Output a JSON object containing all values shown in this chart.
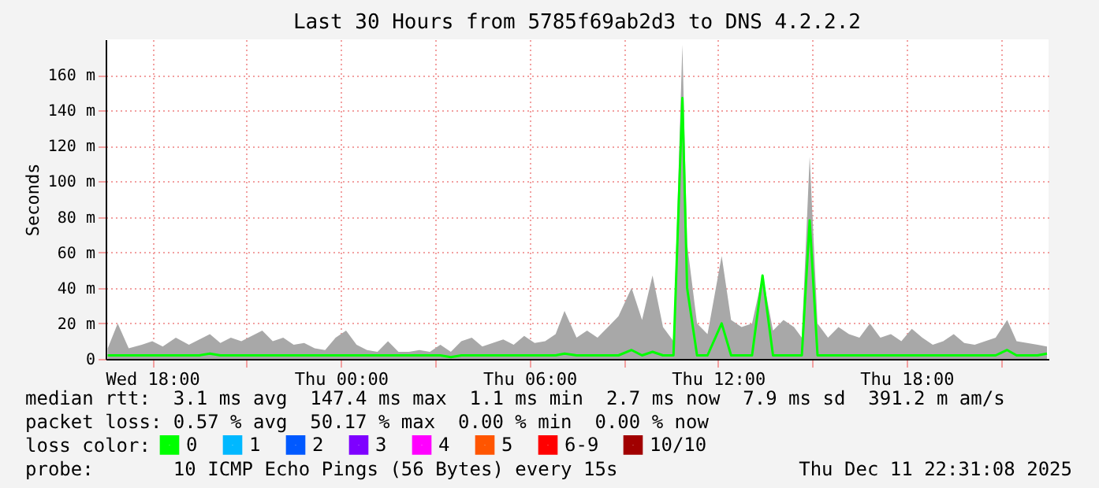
{
  "chart_data": {
    "type": "line",
    "title": "Last 30 Hours from 5785f69ab2d3 to DNS 4.2.2.2",
    "ylabel": "Seconds",
    "legend_title": "loss color:",
    "legend": "bottom",
    "grid": true,
    "marker": "none",
    "line_style": "solid",
    "x": [
      "2025-12-10T16:35",
      "2025-12-10T16:54",
      "2025-12-10T17:15",
      "2025-12-10T17:40",
      "2025-12-10T18:00",
      "2025-12-10T18:20",
      "2025-12-10T18:45",
      "2025-12-10T19:10",
      "2025-12-10T19:30",
      "2025-12-10T19:50",
      "2025-12-10T20:10",
      "2025-12-10T20:30",
      "2025-12-10T20:50",
      "2025-12-10T21:10",
      "2025-12-10T21:30",
      "2025-12-10T21:50",
      "2025-12-10T22:10",
      "2025-12-10T22:30",
      "2025-12-10T22:50",
      "2025-12-10T23:10",
      "2025-12-10T23:30",
      "2025-12-10T23:50",
      "2025-12-11T00:10",
      "2025-12-11T00:30",
      "2025-12-11T00:50",
      "2025-12-11T01:10",
      "2025-12-11T01:30",
      "2025-12-11T01:50",
      "2025-12-11T02:10",
      "2025-12-11T02:30",
      "2025-12-11T02:50",
      "2025-12-11T03:10",
      "2025-12-11T03:30",
      "2025-12-11T03:50",
      "2025-12-11T04:10",
      "2025-12-11T04:30",
      "2025-12-11T04:50",
      "2025-12-11T05:10",
      "2025-12-11T05:30",
      "2025-12-11T05:50",
      "2025-12-11T06:10",
      "2025-12-11T06:30",
      "2025-12-11T06:50",
      "2025-12-11T07:07",
      "2025-12-11T07:30",
      "2025-12-11T07:50",
      "2025-12-11T08:10",
      "2025-12-11T08:30",
      "2025-12-11T08:50",
      "2025-12-11T09:15",
      "2025-12-11T09:35",
      "2025-12-11T09:55",
      "2025-12-11T10:15",
      "2025-12-11T10:35",
      "2025-12-11T10:52",
      "2025-12-11T11:01",
      "2025-12-11T11:20",
      "2025-12-11T11:40",
      "2025-12-11T12:07",
      "2025-12-11T12:25",
      "2025-12-11T12:45",
      "2025-12-11T13:05",
      "2025-12-11T13:25",
      "2025-12-11T13:45",
      "2025-12-11T14:05",
      "2025-12-11T14:25",
      "2025-12-11T14:40",
      "2025-12-11T14:55",
      "2025-12-11T15:10",
      "2025-12-11T15:30",
      "2025-12-11T15:50",
      "2025-12-11T16:10",
      "2025-12-11T16:30",
      "2025-12-11T16:50",
      "2025-12-11T17:10",
      "2025-12-11T17:30",
      "2025-12-11T17:50",
      "2025-12-11T18:10",
      "2025-12-11T18:30",
      "2025-12-11T18:50",
      "2025-12-11T19:10",
      "2025-12-11T19:30",
      "2025-12-11T19:50",
      "2025-12-11T20:10",
      "2025-12-11T20:30",
      "2025-12-11T20:50",
      "2025-12-11T21:12",
      "2025-12-11T21:30",
      "2025-12-11T21:50",
      "2025-12-11T22:10",
      "2025-12-11T22:28"
    ],
    "series": [
      {
        "type": "area",
        "color": "#a8a8a8",
        "values": [
          6,
          20,
          6,
          8,
          10,
          7,
          12,
          8,
          11,
          14,
          9,
          12,
          10,
          13,
          16,
          10,
          12,
          8,
          9,
          6,
          5,
          12,
          16,
          8,
          5,
          4,
          10,
          4,
          4,
          5,
          4,
          8,
          4,
          10,
          12,
          7,
          9,
          11,
          8,
          13,
          9,
          10,
          14,
          27,
          12,
          16,
          12,
          18,
          24,
          40,
          22,
          47,
          18,
          10,
          177,
          65,
          20,
          14,
          58,
          22,
          18,
          20,
          47,
          16,
          22,
          18,
          12,
          114,
          20,
          12,
          18,
          14,
          12,
          20,
          12,
          14,
          10,
          17,
          12,
          8,
          10,
          14,
          9,
          8,
          10,
          12,
          22,
          10,
          9,
          8,
          7
        ]
      },
      {
        "name": "0",
        "color": "#00ff00",
        "values": [
          2,
          2,
          2,
          2,
          2,
          2,
          2,
          2,
          2,
          3,
          2,
          2,
          2,
          2,
          2,
          2,
          2,
          2,
          2,
          2,
          2,
          2,
          2,
          2,
          2,
          2,
          2,
          2,
          2,
          2,
          2,
          2,
          1,
          2,
          2,
          2,
          2,
          2,
          2,
          2,
          2,
          2,
          2,
          3,
          2,
          2,
          2,
          2,
          2,
          5,
          2,
          4,
          2,
          2,
          147,
          40,
          2,
          2,
          20,
          2,
          2,
          2,
          47,
          2,
          2,
          2,
          2,
          78,
          2,
          2,
          2,
          2,
          2,
          2,
          2,
          2,
          2,
          2,
          2,
          2,
          2,
          2,
          2,
          2,
          2,
          2,
          5,
          2,
          2,
          2,
          3
        ]
      },
      {
        "name": "1",
        "color": "#00b8ff",
        "values": [
          null,
          null,
          null,
          null,
          null,
          null,
          null,
          null,
          null,
          null,
          null,
          null,
          null,
          null,
          null,
          null,
          null,
          null,
          null,
          null,
          null,
          null,
          null,
          null,
          null,
          null,
          null,
          null,
          null,
          null,
          null,
          null,
          null,
          null,
          null,
          null,
          null,
          null,
          null,
          null,
          null,
          null,
          null,
          null,
          null,
          null,
          null,
          null,
          null,
          null,
          null,
          null,
          null,
          null,
          null,
          null,
          null,
          null,
          null,
          null,
          null,
          null,
          null,
          null,
          null,
          null,
          null,
          null,
          null,
          null,
          null,
          null,
          null,
          null,
          null,
          null,
          null,
          null,
          null,
          null,
          null,
          null,
          null,
          null,
          null,
          null,
          null,
          null,
          null,
          null,
          null
        ]
      },
      {
        "name": "2",
        "color": "#0059ff",
        "values": [
          null,
          null,
          null,
          null,
          null,
          null,
          null,
          null,
          null,
          null,
          null,
          null,
          null,
          null,
          null,
          null,
          null,
          null,
          null,
          null,
          null,
          null,
          null,
          null,
          null,
          null,
          null,
          null,
          null,
          null,
          null,
          null,
          null,
          null,
          null,
          null,
          null,
          null,
          null,
          null,
          null,
          null,
          null,
          null,
          null,
          null,
          null,
          null,
          null,
          null,
          null,
          null,
          null,
          null,
          null,
          null,
          null,
          null,
          null,
          null,
          null,
          null,
          null,
          null,
          null,
          null,
          null,
          null,
          null,
          null,
          null,
          null,
          null,
          null,
          null,
          null,
          null,
          null,
          null,
          null,
          null,
          null,
          null,
          null,
          null,
          null,
          null,
          null,
          null,
          null,
          null
        ]
      },
      {
        "name": "3",
        "color": "#7e00ff",
        "values": [
          null,
          null,
          null,
          null,
          null,
          null,
          null,
          null,
          null,
          null,
          null,
          null,
          null,
          null,
          null,
          null,
          null,
          null,
          null,
          null,
          null,
          null,
          null,
          null,
          null,
          null,
          null,
          null,
          null,
          null,
          null,
          null,
          null,
          null,
          null,
          null,
          null,
          null,
          null,
          null,
          null,
          null,
          null,
          null,
          null,
          null,
          null,
          null,
          null,
          null,
          null,
          null,
          null,
          null,
          null,
          null,
          null,
          null,
          null,
          null,
          null,
          null,
          null,
          null,
          null,
          null,
          null,
          null,
          null,
          null,
          null,
          null,
          null,
          null,
          null,
          null,
          null,
          null,
          null,
          null,
          null,
          null,
          null,
          null,
          null,
          null,
          null,
          null,
          null,
          null,
          null
        ]
      },
      {
        "name": "4",
        "color": "#ff00ff",
        "values": [
          null,
          null,
          null,
          null,
          null,
          null,
          null,
          null,
          null,
          null,
          null,
          null,
          null,
          null,
          null,
          null,
          null,
          null,
          null,
          null,
          null,
          null,
          null,
          null,
          null,
          null,
          null,
          null,
          null,
          null,
          null,
          null,
          null,
          null,
          null,
          null,
          null,
          null,
          null,
          null,
          null,
          null,
          null,
          null,
          null,
          null,
          null,
          null,
          null,
          null,
          null,
          null,
          null,
          null,
          null,
          null,
          null,
          null,
          null,
          null,
          null,
          null,
          null,
          null,
          null,
          null,
          null,
          null,
          null,
          null,
          null,
          null,
          null,
          null,
          null,
          null,
          null,
          null,
          null,
          null,
          null,
          null,
          null,
          null,
          null,
          null,
          null,
          null,
          null,
          null,
          null
        ]
      },
      {
        "name": "5",
        "color": "#ff5500",
        "values": [
          null,
          null,
          null,
          null,
          null,
          null,
          null,
          null,
          null,
          null,
          null,
          null,
          null,
          null,
          null,
          null,
          null,
          null,
          null,
          null,
          null,
          null,
          null,
          null,
          null,
          null,
          null,
          null,
          null,
          null,
          null,
          null,
          null,
          null,
          null,
          null,
          null,
          null,
          null,
          null,
          null,
          null,
          null,
          null,
          null,
          null,
          null,
          null,
          null,
          null,
          null,
          null,
          null,
          null,
          null,
          null,
          null,
          null,
          null,
          null,
          null,
          null,
          null,
          null,
          null,
          null,
          null,
          null,
          null,
          null,
          null,
          null,
          null,
          null,
          null,
          null,
          null,
          null,
          null,
          null,
          null,
          null,
          null,
          null,
          null,
          null,
          null,
          null,
          null,
          null,
          null
        ]
      },
      {
        "name": "6-9",
        "color": "#ff0000",
        "values": [
          null,
          null,
          null,
          null,
          null,
          null,
          null,
          null,
          null,
          null,
          null,
          null,
          null,
          null,
          null,
          null,
          null,
          null,
          null,
          null,
          null,
          null,
          null,
          null,
          null,
          null,
          null,
          null,
          null,
          null,
          null,
          null,
          null,
          null,
          null,
          null,
          null,
          null,
          null,
          null,
          null,
          null,
          null,
          null,
          null,
          null,
          null,
          null,
          null,
          null,
          null,
          null,
          null,
          null,
          null,
          null,
          null,
          null,
          null,
          null,
          null,
          null,
          null,
          null,
          null,
          null,
          null,
          null,
          null,
          null,
          null,
          null,
          null,
          null,
          null,
          null,
          null,
          null,
          null,
          null,
          null,
          null,
          null,
          null,
          null,
          null,
          null,
          null,
          null,
          null,
          null
        ]
      },
      {
        "name": "10/10",
        "color": "#a10000",
        "values": [
          null,
          null,
          null,
          null,
          null,
          null,
          null,
          null,
          null,
          null,
          null,
          null,
          null,
          null,
          null,
          null,
          null,
          null,
          null,
          null,
          null,
          null,
          null,
          null,
          null,
          null,
          null,
          null,
          null,
          null,
          null,
          null,
          null,
          null,
          null,
          null,
          null,
          null,
          null,
          null,
          null,
          null,
          null,
          null,
          null,
          null,
          null,
          null,
          null,
          null,
          null,
          null,
          null,
          null,
          null,
          null,
          null,
          null,
          null,
          null,
          null,
          null,
          null,
          null,
          null,
          null,
          null,
          null,
          null,
          null,
          null,
          null,
          null,
          null,
          null,
          null,
          null,
          null,
          null,
          null,
          null,
          null,
          null,
          null,
          null,
          null,
          null,
          null,
          null,
          null,
          null
        ]
      }
    ],
    "xlim": [
      "2025-12-10T16:31",
      "2025-12-11T22:31"
    ],
    "xticks": [
      {
        "value": "2025-12-10T18:00",
        "label": "Wed 18:00"
      },
      {
        "value": "2025-12-10T21:00",
        "label": null
      },
      {
        "value": "2025-12-11T00:00",
        "label": "Thu 00:00"
      },
      {
        "value": "2025-12-11T03:00",
        "label": null
      },
      {
        "value": "2025-12-11T06:00",
        "label": "Thu 06:00"
      },
      {
        "value": "2025-12-11T09:00",
        "label": null
      },
      {
        "value": "2025-12-11T12:00",
        "label": "Thu 12:00"
      },
      {
        "value": "2025-12-11T15:00",
        "label": null
      },
      {
        "value": "2025-12-11T18:00",
        "label": "Thu 18:00"
      },
      {
        "value": "2025-12-11T21:00",
        "label": null
      }
    ],
    "ylim": [
      0,
      180
    ],
    "yticks": [
      0,
      {
        "value": 20,
        "label": "20 m"
      },
      {
        "value": 40,
        "label": "40 m"
      },
      {
        "value": 60,
        "label": "60 m"
      },
      {
        "value": 80,
        "label": "80 m"
      },
      {
        "value": 100,
        "label": "100 m"
      },
      {
        "value": 120,
        "label": "120 m"
      },
      {
        "value": 140,
        "label": "140 m"
      },
      {
        "value": 160,
        "label": "160 m"
      }
    ],
    "annotations": [
      "median rtt:  3.1 ms avg  147.4 ms max  1.1 ms min  2.7 ms now  7.9 ms sd  391.2 m am/s",
      "packet loss: 0.57 % avg  50.17 % max  0.00 % min  0.00 % now",
      "probe:       10 ICMP Echo Pings (56 Bytes) every 15s",
      "Thu Dec 11 22:31:08 2025"
    ]
  }
}
